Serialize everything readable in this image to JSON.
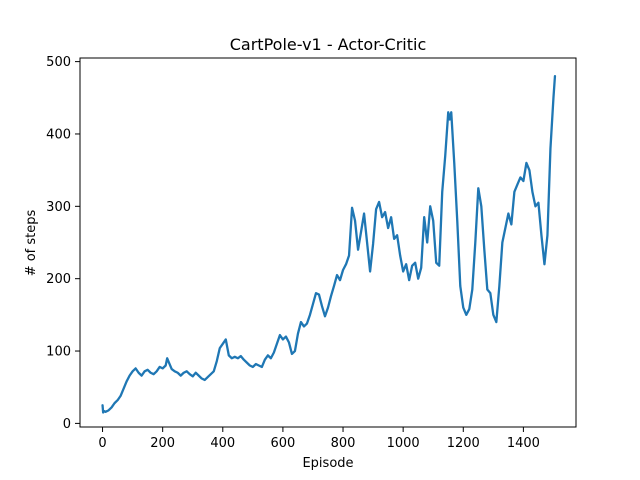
{
  "chart_data": {
    "type": "line",
    "title": "CartPole-v1 - Actor-Critic",
    "xlabel": "Episode",
    "ylabel": "# of steps",
    "xlim": [
      -75,
      1575
    ],
    "ylim": [
      -5,
      505
    ],
    "xticks": [
      0,
      200,
      400,
      600,
      800,
      1000,
      1200,
      1400
    ],
    "yticks": [
      0,
      100,
      200,
      300,
      400,
      500
    ],
    "grid": false,
    "series": [
      {
        "color": "#1f77b4",
        "x": [
          0,
          2,
          5,
          10,
          20,
          30,
          40,
          50,
          60,
          70,
          80,
          90,
          100,
          110,
          120,
          130,
          140,
          150,
          160,
          170,
          180,
          190,
          200,
          210,
          215,
          220,
          230,
          240,
          250,
          260,
          270,
          280,
          290,
          300,
          310,
          320,
          330,
          340,
          350,
          360,
          370,
          380,
          390,
          400,
          410,
          420,
          430,
          440,
          450,
          460,
          470,
          480,
          490,
          500,
          510,
          520,
          530,
          540,
          550,
          560,
          570,
          580,
          590,
          600,
          610,
          620,
          630,
          640,
          650,
          660,
          670,
          680,
          690,
          700,
          710,
          720,
          730,
          740,
          750,
          760,
          770,
          780,
          790,
          800,
          810,
          820,
          830,
          840,
          850,
          860,
          870,
          880,
          890,
          900,
          910,
          920,
          930,
          940,
          950,
          960,
          970,
          980,
          990,
          1000,
          1010,
          1020,
          1030,
          1040,
          1050,
          1060,
          1070,
          1080,
          1090,
          1100,
          1110,
          1120,
          1130,
          1140,
          1150,
          1155,
          1160,
          1170,
          1180,
          1190,
          1200,
          1210,
          1220,
          1230,
          1240,
          1250,
          1260,
          1270,
          1280,
          1290,
          1300,
          1310,
          1320,
          1330,
          1340,
          1350,
          1360,
          1370,
          1380,
          1390,
          1400,
          1410,
          1420,
          1430,
          1440,
          1450,
          1460,
          1470,
          1480,
          1490,
          1500,
          1505
        ],
        "y": [
          25,
          15,
          17,
          16,
          18,
          22,
          28,
          32,
          38,
          48,
          58,
          66,
          72,
          76,
          70,
          66,
          72,
          74,
          70,
          68,
          72,
          78,
          76,
          80,
          90,
          85,
          75,
          72,
          70,
          66,
          70,
          72,
          68,
          65,
          70,
          66,
          62,
          60,
          64,
          68,
          72,
          86,
          104,
          110,
          116,
          94,
          90,
          92,
          90,
          93,
          88,
          84,
          80,
          78,
          82,
          80,
          78,
          88,
          94,
          90,
          98,
          110,
          122,
          116,
          120,
          112,
          96,
          100,
          124,
          140,
          134,
          138,
          150,
          165,
          180,
          178,
          162,
          148,
          160,
          176,
          190,
          205,
          198,
          212,
          220,
          232,
          298,
          280,
          240,
          265,
          290,
          250,
          210,
          248,
          296,
          306,
          285,
          292,
          270,
          285,
          255,
          260,
          232,
          210,
          220,
          198,
          218,
          222,
          200,
          215,
          285,
          250,
          300,
          280,
          222,
          218,
          320,
          370,
          430,
          420,
          430,
          360,
          280,
          190,
          160,
          150,
          158,
          185,
          250,
          325,
          300,
          240,
          185,
          180,
          150,
          140,
          190,
          250,
          270,
          290,
          275,
          320,
          330,
          340,
          335,
          360,
          350,
          320,
          300,
          305,
          260,
          220,
          260,
          380,
          450,
          480
        ]
      }
    ]
  }
}
